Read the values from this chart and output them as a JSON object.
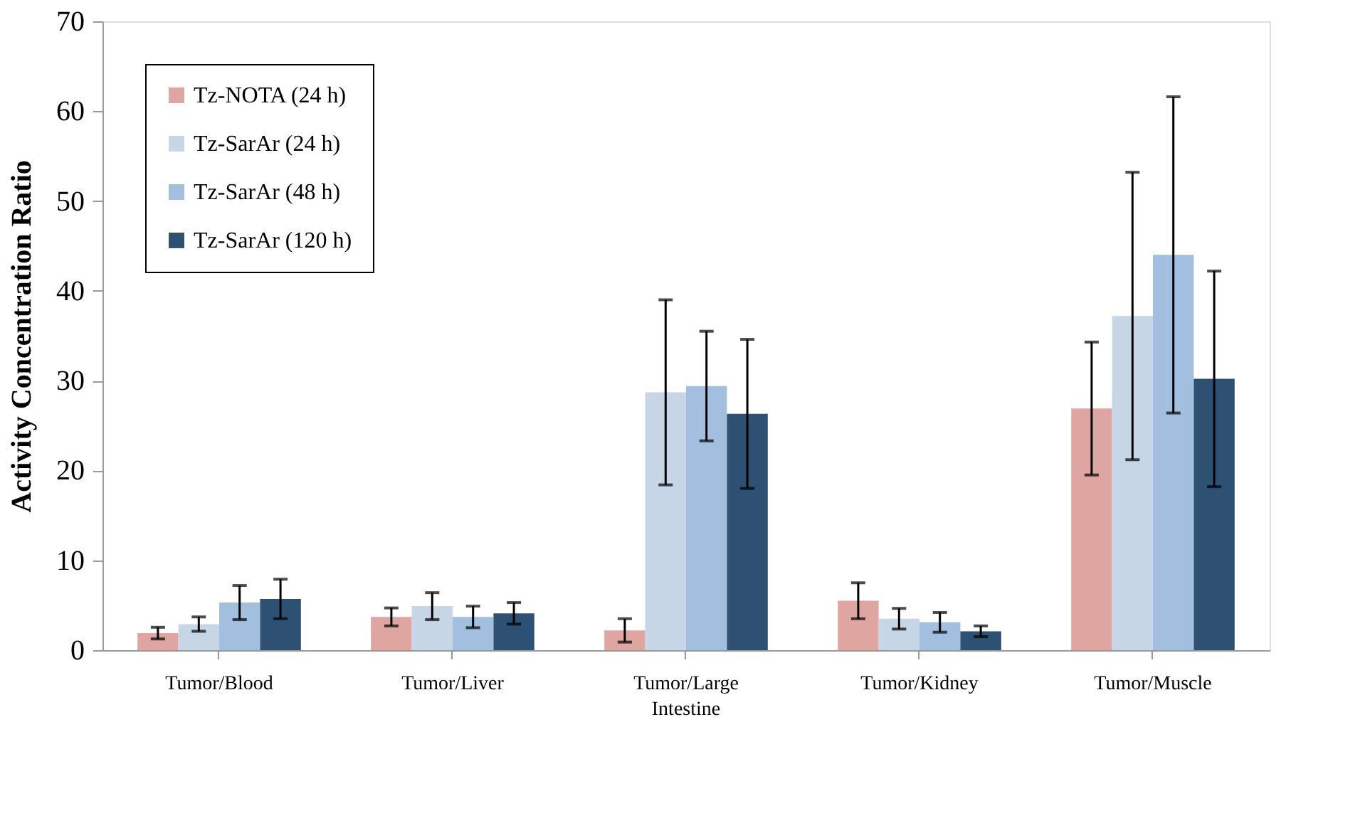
{
  "chart_data": {
    "type": "bar",
    "ylabel": "Activity Concentration Ratio",
    "categories": [
      "Tumor/Blood",
      "Tumor/Liver",
      "Tumor/Large Intestine",
      "Tumor/Kidney",
      "Tumor/Muscle"
    ],
    "series": [
      {
        "name": "Tz-NOTA (24 h)",
        "color": "#dfa5a1",
        "values": [
          1.9,
          3.7,
          2.2,
          5.5,
          26.9
        ],
        "errors": [
          0.65,
          1.0,
          1.3,
          2.0,
          7.4
        ]
      },
      {
        "name": "Tz-SarAr (24 h)",
        "color": "#c6d6e7",
        "values": [
          2.9,
          4.9,
          28.7,
          3.5,
          37.2
        ],
        "errors": [
          0.8,
          1.5,
          10.3,
          1.15,
          16.0
        ]
      },
      {
        "name": "Tz-SarAr (48 h)",
        "color": "#a3bfdf",
        "values": [
          5.3,
          3.7,
          29.4,
          3.1,
          44.0
        ],
        "errors": [
          1.9,
          1.2,
          6.1,
          1.1,
          17.6
        ]
      },
      {
        "name": "Tz-SarAr (120 h)",
        "color": "#2e5073",
        "values": [
          5.7,
          4.1,
          26.3,
          2.1,
          30.2
        ],
        "errors": [
          2.2,
          1.2,
          8.3,
          0.6,
          12.0
        ]
      }
    ],
    "ylim": [
      0,
      70
    ],
    "yticks": [
      0,
      10,
      20,
      30,
      40,
      50,
      60,
      70
    ],
    "grid": false,
    "legend": "top left"
  }
}
